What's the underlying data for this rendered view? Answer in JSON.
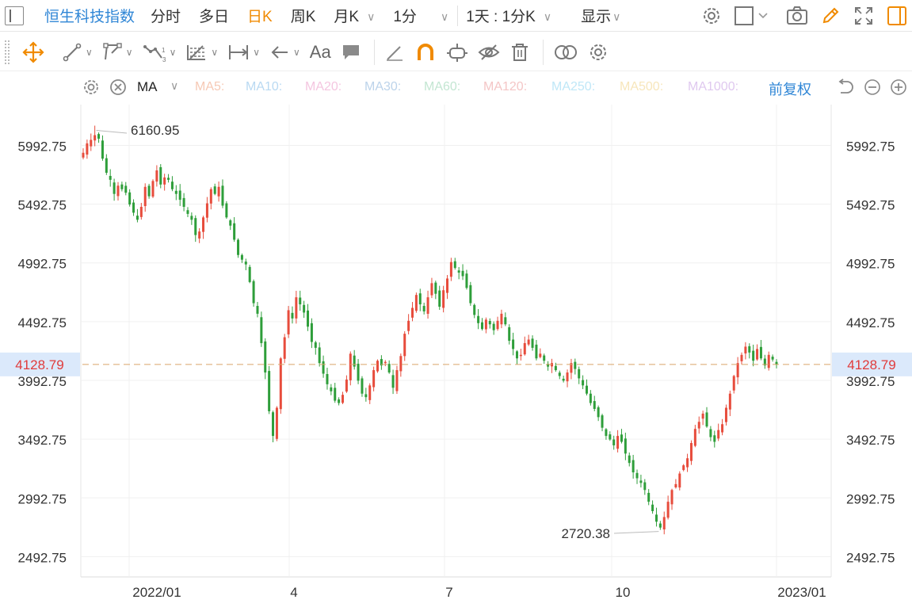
{
  "top_bar": {
    "title": "恒生科技指数",
    "period_tabs": [
      {
        "label": "分时",
        "active": false,
        "dropdown": false
      },
      {
        "label": "多日",
        "active": false,
        "dropdown": false
      },
      {
        "label": "日K",
        "active": true,
        "dropdown": false
      },
      {
        "label": "周K",
        "active": false,
        "dropdown": false
      },
      {
        "label": "月K",
        "active": false,
        "dropdown": true
      },
      {
        "label": "1分",
        "active": false,
        "dropdown": true
      }
    ],
    "range_label": "1天 : 1分K",
    "display_label": "显示",
    "icons": [
      "settings-icon",
      "square-icon",
      "camera-icon",
      "pencil-icon",
      "fullscreen-icon",
      "sidebar-icon"
    ]
  },
  "drawing_toolbar": {
    "tools": [
      "move-icon",
      "line-icon",
      "polyline-icon",
      "wave-icon",
      "fibonacci-icon",
      "range-icon",
      "arrow-icon",
      "text-icon",
      "comment-icon",
      "ruler-icon",
      "magnet-icon",
      "lock-icon",
      "hide-icon",
      "trash-icon",
      "compare-icon",
      "settings-icon"
    ],
    "text_tool_label": "Aa"
  },
  "indicator_bar": {
    "indicator": "MA",
    "ma_items": [
      {
        "label": "MA5:",
        "color": "#f6c9b5"
      },
      {
        "label": "MA10:",
        "color": "#b9d9f2"
      },
      {
        "label": "MA20:",
        "color": "#f4c6e0"
      },
      {
        "label": "MA30:",
        "color": "#bcd3ea"
      },
      {
        "label": "MA60:",
        "color": "#c3e6d2"
      },
      {
        "label": "MA120:",
        "color": "#f4c6c6"
      },
      {
        "label": "MA250:",
        "color": "#bfe7f7"
      },
      {
        "label": "MA500:",
        "color": "#f7e6bb"
      },
      {
        "label": "MA1000:",
        "color": "#dfc8ef"
      }
    ],
    "adjust_label": "前复权"
  },
  "chart_data": {
    "type": "candlestick",
    "title": "",
    "y_ticks": [
      "5992.75",
      "5492.75",
      "4992.75",
      "4492.75",
      "3992.75",
      "3492.75",
      "2992.75",
      "2492.75"
    ],
    "x_ticks": [
      "2022/01",
      "4",
      "7",
      "10",
      "2023/01"
    ],
    "ylim": [
      2320,
      6340
    ],
    "current_price": "4128.79",
    "high_marker": {
      "label": "6160.95",
      "value": 6160.95
    },
    "low_marker": {
      "label": "2720.38",
      "value": 2720.38
    },
    "colors": {
      "up": "#e74c3c",
      "down": "#2e9e3a",
      "current": "#e03b3b",
      "grid": "#f0f0f0"
    },
    "closes": [
      5930,
      6010,
      6040,
      6080,
      6050,
      5880,
      5760,
      5700,
      5580,
      5650,
      5620,
      5590,
      5490,
      5420,
      5360,
      5470,
      5640,
      5560,
      5690,
      5780,
      5660,
      5720,
      5700,
      5620,
      5580,
      5530,
      5470,
      5410,
      5360,
      5230,
      5260,
      5380,
      5500,
      5620,
      5580,
      5640,
      5480,
      5380,
      5310,
      5190,
      5060,
      5020,
      4980,
      4830,
      4650,
      4560,
      4310,
      4060,
      3730,
      3520,
      3760,
      4180,
      4360,
      4590,
      4520,
      4700,
      4640,
      4570,
      4450,
      4320,
      4270,
      4140,
      4050,
      3960,
      3900,
      3820,
      3800,
      3870,
      4000,
      4220,
      4110,
      3990,
      3880,
      3850,
      3950,
      4080,
      4160,
      4120,
      4150,
      4060,
      3930,
      4080,
      4200,
      4390,
      4500,
      4610,
      4720,
      4640,
      4580,
      4700,
      4820,
      4730,
      4620,
      4760,
      4860,
      5000,
      4950,
      4910,
      4880,
      4780,
      4650,
      4550,
      4480,
      4430,
      4510,
      4470,
      4420,
      4500,
      4560,
      4470,
      4330,
      4260,
      4180,
      4210,
      4310,
      4340,
      4270,
      4180,
      4220,
      4160,
      4110,
      4140,
      4080,
      4030,
      3990,
      4060,
      4140,
      4090,
      4010,
      3950,
      3880,
      3800,
      3750,
      3680,
      3590,
      3520,
      3490,
      3440,
      3520,
      3470,
      3370,
      3290,
      3210,
      3160,
      3120,
      3060,
      2960,
      2880,
      2790,
      2740,
      2830,
      2960,
      3060,
      3110,
      3200,
      3270,
      3330,
      3460,
      3580,
      3640,
      3710,
      3600,
      3510,
      3470,
      3570,
      3620,
      3760,
      3880,
      4030,
      4140,
      4210,
      4280,
      4230,
      4160,
      4260,
      4180,
      4120,
      4210,
      4170,
      4128.79
    ]
  }
}
